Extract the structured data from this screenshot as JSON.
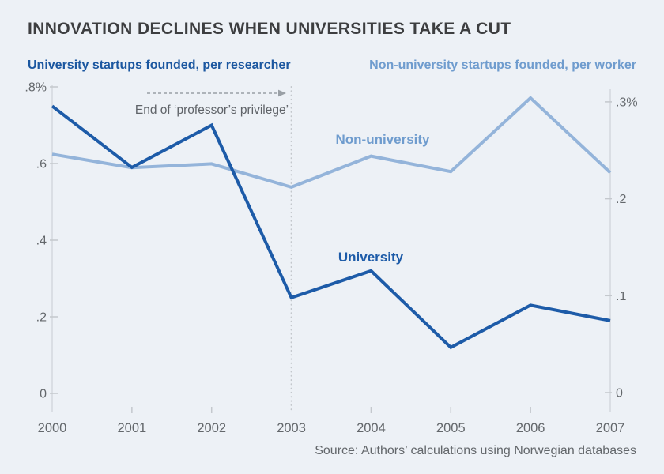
{
  "title": "INNOVATION DECLINES WHEN UNIVERSITIES TAKE A CUT",
  "left_axis_title": "University startups founded, per researcher",
  "right_axis_title": "Non-university startups founded, per worker",
  "annotation": {
    "text": "End of ‘professor’s privilege’"
  },
  "source": "Source: Authors’ calculations using Norwegian databases",
  "colors": {
    "background": "#edf1f6",
    "title": "#3d3e40",
    "axis_text": "#63676b",
    "axis_line": "#d4d8dd",
    "tick": "#c4c8cd",
    "event_line": "#c3c7cc",
    "arrow": "#9aa0a6",
    "annotation_text": "#5f6368",
    "source_text": "#63676b",
    "university": "#1d5ba8",
    "university_label": "#1d5ba8",
    "nonuniversity": "#94b4da",
    "nonuniversity_label": "#6f9cce",
    "left_title": "#1b57a0",
    "right_title": "#6f9cce"
  },
  "chart_data": {
    "type": "line",
    "title": "INNOVATION DECLINES WHEN UNIVERSITIES TAKE A CUT",
    "x": [
      2000,
      2001,
      2002,
      2003,
      2004,
      2005,
      2006,
      2007
    ],
    "x_tick_labels": [
      "2000",
      "2001",
      "2002",
      "2003",
      "2004",
      "2005",
      "2006",
      "2007"
    ],
    "series": [
      {
        "name": "Non-university",
        "label": "Non-university",
        "axis": "right",
        "units": "percent of startups founded per worker",
        "color_key": "nonuniversity",
        "values": [
          0.246,
          0.232,
          0.236,
          0.212,
          0.244,
          0.228,
          0.304,
          0.227
        ]
      },
      {
        "name": "University",
        "label": "University",
        "axis": "left",
        "units": "percent of startups founded per researcher",
        "color_key": "university",
        "values": [
          0.75,
          0.59,
          0.7,
          0.25,
          0.32,
          0.12,
          0.23,
          0.19
        ]
      }
    ],
    "left_axis": {
      "title": "University startups founded, per researcher",
      "tick_labels": [
        ".8%",
        ".6",
        ".4",
        ".2",
        "0"
      ],
      "tick_values": [
        0.8,
        0.6,
        0.4,
        0.2,
        0
      ],
      "range": [
        0,
        0.85
      ]
    },
    "right_axis": {
      "title": "Non-university startups founded, per worker",
      "tick_labels": [
        ".3%",
        ".2",
        ".1",
        "0"
      ],
      "tick_values": [
        0.3,
        0.2,
        0.1,
        0
      ],
      "range": [
        0,
        0.316
      ]
    },
    "event_line": {
      "x": 2003,
      "label": "End of ‘professor’s privilege’"
    },
    "grid": false,
    "legend": "inline-series-labels"
  }
}
